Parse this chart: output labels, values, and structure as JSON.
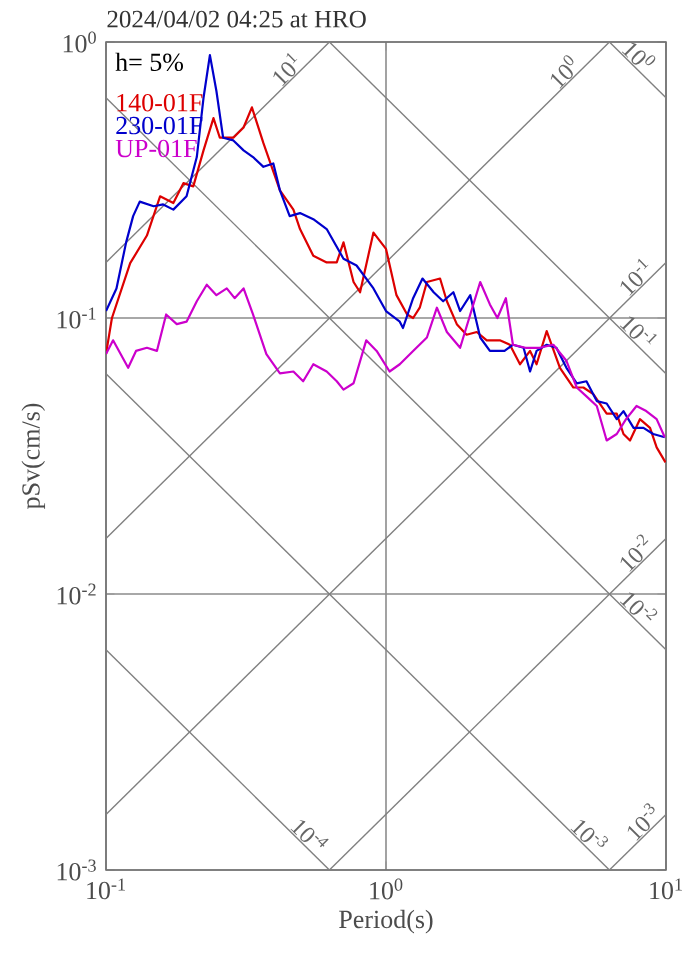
{
  "chart_data": {
    "type": "line",
    "title": "2024/04/02 04:25 at HRO",
    "xlabel": "Period(s)",
    "ylabel": "pSv(cm/s)",
    "log": "xy",
    "grid": true,
    "legend": "top left",
    "xlim": [
      0.1,
      10
    ],
    "ylim": [
      0.001,
      1
    ],
    "xticks": [
      {
        "value": 0.1,
        "label": "10$^{-1}$"
      },
      {
        "value": 1,
        "label": "10$^{0}$"
      },
      {
        "value": 10,
        "label": "10$^{1}$"
      }
    ],
    "yticks": [
      {
        "value": 0.001,
        "label": "10$^{-3}$"
      },
      {
        "value": 0.01,
        "label": "10$^{-2}$"
      },
      {
        "value": 0.1,
        "label": "10$^{-1}$"
      },
      {
        "value": 1,
        "label": "10$^{0}$"
      }
    ],
    "annotations": [
      "h= 5%",
      {
        "text": "10$^{1}$",
        "x": 0.47,
        "y": 0.747
      },
      {
        "text": "10$^{0}$",
        "x": 4.6,
        "y": 0.731
      },
      {
        "text": "10$^{0}$",
        "x": 7.5,
        "y": 0.837
      },
      {
        "text": "10$^{-1}$",
        "x": 8.3,
        "y": 0.132
      },
      {
        "text": "10$^{-1}$",
        "x": 7.5,
        "y": 0.0837
      },
      {
        "text": "10$^{-2}$",
        "x": 8.3,
        "y": 0.0132
      },
      {
        "text": "10$^{-2}$",
        "x": 7.5,
        "y": 0.00837
      },
      {
        "text": "10$^{-3}$",
        "x": 5.0,
        "y": 0.001256
      },
      {
        "text": "10$^{-3}$",
        "x": 8.8,
        "y": 0.0014
      },
      {
        "text": "10$^{-4}$",
        "x": 0.5,
        "y": 0.001256
      }
    ],
    "series": [
      {
        "color": "#808080",
        "x": [
          0.1,
          0.628
        ],
        "values": [
          0.159,
          1
        ]
      },
      {
        "color": "#808080",
        "x": [
          0.1,
          6.28
        ],
        "values": [
          0.0159,
          1
        ]
      },
      {
        "color": "#808080",
        "x": [
          0.1,
          10
        ],
        "values": [
          0.00159,
          0.159
        ]
      },
      {
        "color": "#808080",
        "x": [
          0.628,
          10
        ],
        "values": [
          0.001,
          0.0159
        ]
      },
      {
        "color": "#808080",
        "x": [
          6.28,
          10
        ],
        "values": [
          0.001,
          0.00159
        ]
      },
      {
        "color": "#808080",
        "x": [
          0.1,
          0.628
        ],
        "values": [
          0.00628,
          0.001
        ]
      },
      {
        "color": "#808080",
        "x": [
          0.1,
          6.28
        ],
        "values": [
          0.0628,
          0.001
        ]
      },
      {
        "color": "#808080",
        "x": [
          0.1,
          10
        ],
        "values": [
          0.628,
          0.00628
        ]
      },
      {
        "color": "#808080",
        "x": [
          0.628,
          10
        ],
        "values": [
          1,
          0.0628
        ]
      },
      {
        "color": "#808080",
        "x": [
          6.28,
          10
        ],
        "values": [
          1,
          0.628
        ]
      },
      {
        "name": "140-01F",
        "color": "#dd0000",
        "x": [
          0.1,
          0.105,
          0.122,
          0.14,
          0.156,
          0.174,
          0.189,
          0.205,
          0.223,
          0.242,
          0.255,
          0.285,
          0.31,
          0.332,
          0.365,
          0.418,
          0.467,
          0.493,
          0.55,
          0.614,
          0.667,
          0.705,
          0.766,
          0.808,
          0.902,
          1.0,
          1.09,
          1.19,
          1.25,
          1.32,
          1.4,
          1.56,
          1.65,
          1.79,
          1.94,
          2.11,
          2.29,
          2.55,
          2.77,
          3.01,
          3.27,
          3.45,
          3.75,
          4.18,
          4.67,
          5.07,
          5.5,
          6.14,
          6.67,
          7.05,
          7.44,
          8.07,
          8.77,
          9.26,
          9.96
        ],
        "values": [
          0.074,
          0.1,
          0.158,
          0.199,
          0.276,
          0.261,
          0.308,
          0.3,
          0.405,
          0.53,
          0.45,
          0.45,
          0.49,
          0.58,
          0.43,
          0.29,
          0.247,
          0.21,
          0.168,
          0.159,
          0.159,
          0.188,
          0.135,
          0.124,
          0.204,
          0.178,
          0.121,
          0.103,
          0.1,
          0.109,
          0.135,
          0.139,
          0.115,
          0.095,
          0.087,
          0.089,
          0.083,
          0.083,
          0.08,
          0.068,
          0.076,
          0.068,
          0.0896,
          0.066,
          0.056,
          0.056,
          0.053,
          0.045,
          0.045,
          0.038,
          0.036,
          0.043,
          0.04,
          0.034,
          0.03
        ]
      },
      {
        "name": "230-01F",
        "color": "#0000cc",
        "x": [
          0.1,
          0.109,
          0.118,
          0.125,
          0.132,
          0.148,
          0.16,
          0.174,
          0.194,
          0.211,
          0.223,
          0.235,
          0.248,
          0.262,
          0.285,
          0.31,
          0.335,
          0.365,
          0.396,
          0.418,
          0.453,
          0.493,
          0.55,
          0.614,
          0.705,
          0.785,
          0.902,
          1.0,
          1.12,
          1.15,
          1.25,
          1.35,
          1.48,
          1.6,
          1.74,
          1.84,
          2.0,
          2.17,
          2.35,
          2.65,
          2.84,
          3.1,
          3.27,
          3.45,
          3.75,
          4.06,
          4.41,
          4.8,
          5.2,
          5.66,
          6.14,
          6.67,
          7.05,
          7.66,
          8.31,
          9.0,
          9.9
        ],
        "values": [
          0.106,
          0.128,
          0.188,
          0.234,
          0.264,
          0.254,
          0.258,
          0.247,
          0.276,
          0.383,
          0.628,
          0.896,
          0.663,
          0.45,
          0.44,
          0.405,
          0.383,
          0.353,
          0.363,
          0.29,
          0.234,
          0.24,
          0.228,
          0.21,
          0.164,
          0.155,
          0.128,
          0.106,
          0.097,
          0.092,
          0.118,
          0.139,
          0.124,
          0.115,
          0.124,
          0.106,
          0.121,
          0.085,
          0.076,
          0.076,
          0.08,
          0.078,
          0.064,
          0.076,
          0.08,
          0.078,
          0.066,
          0.058,
          0.059,
          0.05,
          0.049,
          0.043,
          0.046,
          0.04,
          0.04,
          0.038,
          0.037
        ]
      },
      {
        "name": "UP-01F",
        "color": "#cc00cc",
        "x": [
          0.1,
          0.106,
          0.12,
          0.128,
          0.14,
          0.152,
          0.164,
          0.179,
          0.194,
          0.211,
          0.229,
          0.248,
          0.27,
          0.288,
          0.31,
          0.335,
          0.374,
          0.418,
          0.467,
          0.506,
          0.55,
          0.614,
          0.667,
          0.705,
          0.766,
          0.85,
          0.926,
          1.03,
          1.12,
          1.25,
          1.4,
          1.52,
          1.65,
          1.84,
          2.0,
          2.17,
          2.35,
          2.5,
          2.68,
          2.84,
          3.15,
          3.54,
          3.96,
          4.41,
          4.8,
          5.2,
          5.66,
          6.14,
          6.67,
          7.2,
          7.85,
          8.5,
          9.26,
          9.9
        ],
        "values": [
          0.074,
          0.083,
          0.066,
          0.076,
          0.078,
          0.076,
          0.103,
          0.095,
          0.097,
          0.115,
          0.132,
          0.121,
          0.128,
          0.118,
          0.128,
          0.103,
          0.074,
          0.063,
          0.064,
          0.059,
          0.068,
          0.064,
          0.059,
          0.055,
          0.058,
          0.083,
          0.076,
          0.064,
          0.068,
          0.076,
          0.085,
          0.109,
          0.089,
          0.078,
          0.103,
          0.135,
          0.112,
          0.1,
          0.118,
          0.08,
          0.078,
          0.078,
          0.08,
          0.07,
          0.056,
          0.052,
          0.048,
          0.036,
          0.038,
          0.043,
          0.048,
          0.046,
          0.043,
          0.037
        ]
      }
    ]
  }
}
